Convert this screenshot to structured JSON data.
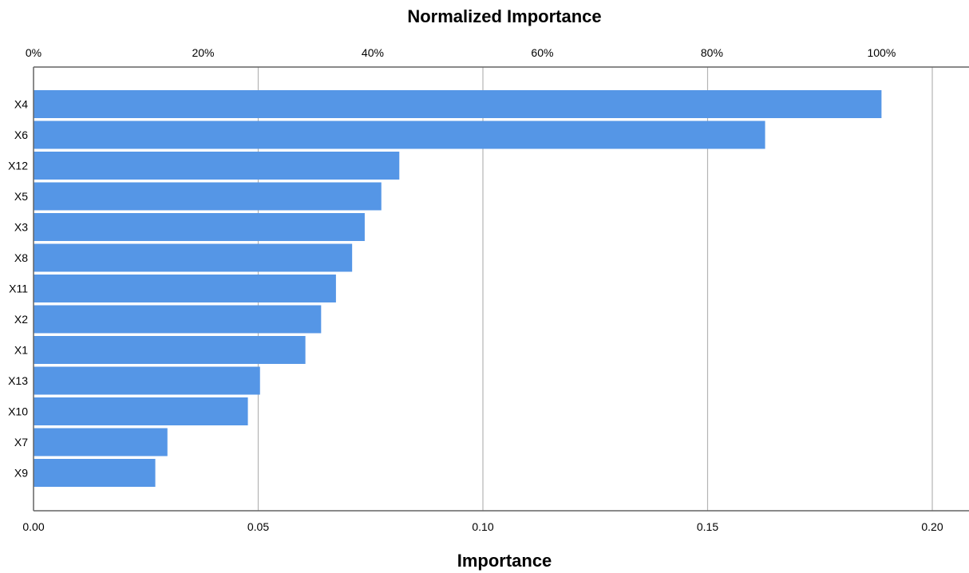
{
  "chart_data": {
    "type": "bar",
    "orientation": "horizontal",
    "title": "Normalized Importance",
    "xlabel": "Importance",
    "ylabel": "",
    "categories": [
      "X4",
      "X6",
      "X12",
      "X5",
      "X3",
      "X8",
      "X11",
      "X2",
      "X1",
      "X13",
      "X10",
      "X7",
      "X9"
    ],
    "values": [
      0.1887,
      0.1628,
      0.0814,
      0.0774,
      0.0737,
      0.0709,
      0.0673,
      0.064,
      0.0605,
      0.0504,
      0.0477,
      0.0298,
      0.0271
    ],
    "xlim": [
      0.0,
      0.21
    ],
    "bottom_ticks": [
      "0.00",
      "0.05",
      "0.10",
      "0.15",
      "0.20"
    ],
    "bottom_tick_values": [
      0.0,
      0.05,
      0.1,
      0.15,
      0.2
    ],
    "top_ticks": [
      "0%",
      "20%",
      "40%",
      "60%",
      "80%",
      "100%"
    ],
    "top_tick_percents": [
      0,
      20,
      40,
      60,
      80,
      100
    ],
    "grid": "vertical",
    "legend": "none",
    "colors": {
      "bar": "#5596e6",
      "grid": "#b4b4b4",
      "axis": "#646464"
    }
  }
}
